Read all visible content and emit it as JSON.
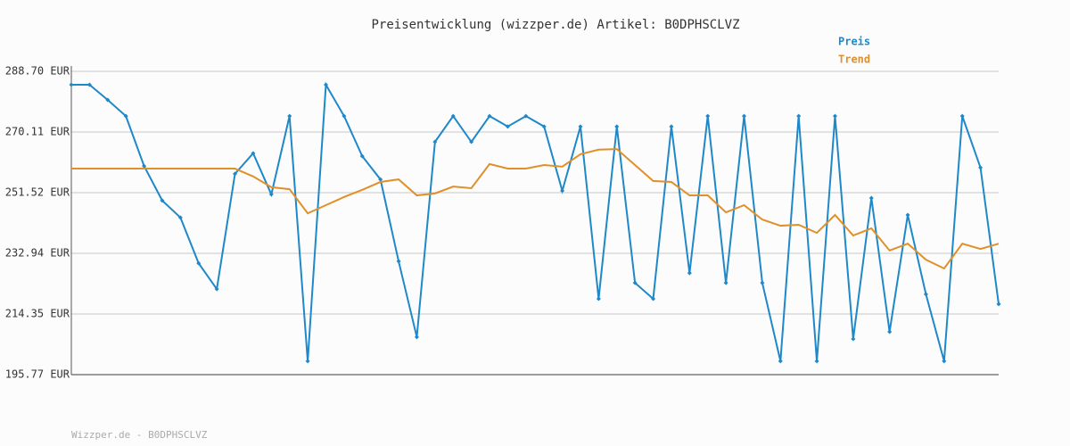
{
  "chart_data": {
    "type": "line",
    "title": "Preisentwicklung (wizzper.de) Artikel: B0DPHSCLVZ",
    "footer": "Wizzper.de - B0DPHSCLVZ",
    "ylim": [
      195.77,
      288.7
    ],
    "yticks": [
      {
        "value": 195.77,
        "label": "195.77 EUR"
      },
      {
        "value": 214.35,
        "label": "214.35 EUR"
      },
      {
        "value": 232.94,
        "label": "232.94 EUR"
      },
      {
        "value": 251.52,
        "label": "251.52 EUR"
      },
      {
        "value": 270.11,
        "label": "270.11 EUR"
      },
      {
        "value": 288.7,
        "label": "288.70 EUR"
      }
    ],
    "grid": true,
    "legend": "top-right",
    "series": [
      {
        "name": "Preis",
        "color": "#1f88c9",
        "markers": true,
        "values": [
          284.6,
          284.6,
          279.95,
          275.0,
          259.7,
          249.1,
          243.9,
          229.9,
          222.0,
          257.3,
          263.6,
          251.0,
          275.0,
          199.9,
          284.6,
          275.0,
          262.7,
          255.6,
          230.5,
          207.3,
          267.1,
          275.0,
          267.1,
          275.0,
          271.8,
          275.0,
          271.8,
          252.1,
          271.8,
          219.0,
          271.8,
          223.9,
          219.0,
          271.8,
          226.9,
          275.0,
          223.9,
          275.0,
          223.9,
          199.9,
          275.0,
          199.9,
          275.0,
          206.7,
          249.9,
          208.9,
          244.7,
          220.4,
          199.9,
          275.0,
          259.2,
          217.4
        ]
      },
      {
        "name": "Trend",
        "color": "#e0902a",
        "markers": false,
        "values": [
          258.9,
          258.9,
          258.9,
          258.9,
          258.9,
          258.9,
          258.9,
          258.9,
          258.9,
          258.9,
          256.5,
          253.2,
          252.6,
          245.2,
          247.7,
          250.2,
          252.4,
          254.8,
          255.6,
          250.7,
          251.3,
          253.4,
          252.9,
          260.3,
          258.9,
          258.9,
          260.0,
          259.5,
          263.3,
          264.7,
          264.9,
          260.0,
          255.1,
          254.8,
          250.7,
          250.7,
          245.5,
          247.7,
          243.3,
          241.4,
          241.7,
          239.2,
          244.7,
          238.4,
          240.6,
          233.8,
          235.9,
          231.0,
          228.3,
          235.9,
          234.3,
          235.9
        ]
      }
    ]
  }
}
